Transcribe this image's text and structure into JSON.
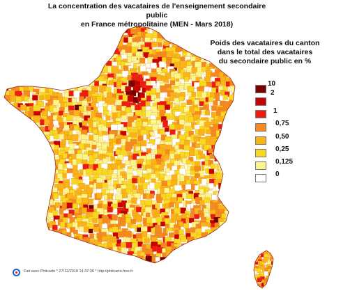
{
  "title": {
    "line1": "La concentration des vacataires de l'enseignement secondaire public",
    "line2": "en France métropolitaine (MEN - Mars 2018)"
  },
  "legend": {
    "title_line1": "Poids des vacataires du canton",
    "title_line2": "dans le total  des  vacataires",
    "title_line3": "du secondaire public en %",
    "breaks": [
      "10",
      "2",
      "1",
      "0,75",
      "0,50",
      "0,25",
      "0,125",
      "0"
    ],
    "classes": [
      {
        "color": "#7a0000"
      },
      {
        "color": "#c80000"
      },
      {
        "color": "#ee1c10"
      },
      {
        "color": "#f58a1f"
      },
      {
        "color": "#fbb418"
      },
      {
        "color": "#f9d820"
      },
      {
        "color": "#fbf58a"
      },
      {
        "color": "#ffffff"
      }
    ]
  },
  "footer": {
    "credit": "Fait avec Philcarto * 27/12/2019 14:37:36 * http://philcarto.free.fr"
  },
  "colors": {
    "border": "#9a2a10",
    "background": "#ffffff"
  }
}
